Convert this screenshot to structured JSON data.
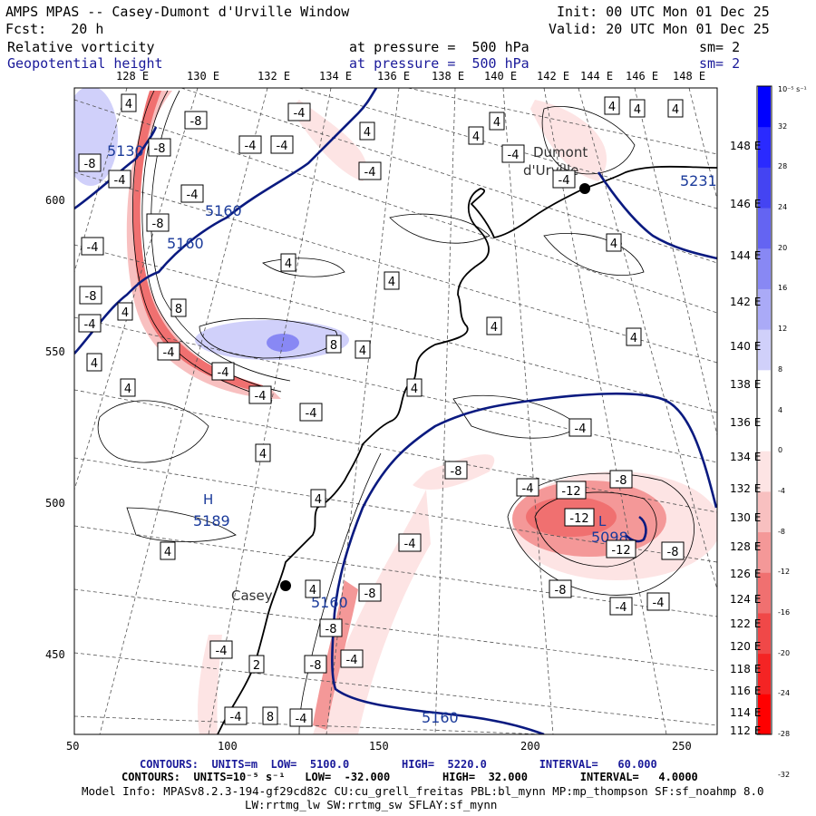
{
  "header": {
    "line1_left": "AMPS MPAS -- Casey-Dumont d'Urville Window",
    "line1_right": "Init: 00 UTC Mon 01 Dec 25",
    "line2_left": "Fcst:   20 h",
    "line2_right": "Valid: 20 UTC Mon 01 Dec 25",
    "field1_name": "Relative vorticity",
    "field1_level": "at pressure =  500 hPa",
    "field1_smooth": "sm= 2",
    "field2_name": "Geopotential height",
    "field2_level": "at pressure =  500 hPa",
    "field2_smooth": "sm= 2"
  },
  "longitude_labels": [
    "128 E",
    "130 E",
    "132 E",
    "134 E",
    "136 E",
    "138 E",
    "140 E",
    "142 E",
    "144 E",
    "146 E",
    "148 E"
  ],
  "x_ticks": [
    "50",
    "100",
    "150",
    "200",
    "250"
  ],
  "y_ticks": [
    "600",
    "550",
    "500",
    "450"
  ],
  "latitude_labels": [
    "148 E",
    "146 E",
    "144 E",
    "142 E",
    "140 E",
    "138 E",
    "136 E",
    "134 E",
    "132 E",
    "130 E",
    "128 E",
    "126 E",
    "124 E",
    "122 E",
    "120 E",
    "118 E",
    "116 E",
    "114 E",
    "112 E"
  ],
  "colorbar": {
    "unit_label": "10⁻⁵ s⁻¹",
    "ticks": [
      "32",
      "28",
      "24",
      "20",
      "16",
      "12",
      "8",
      "4",
      "0",
      "-4",
      "-8",
      "-12",
      "-16",
      "-20",
      "-24",
      "-28",
      "-32"
    ],
    "colors": [
      "#0000ff",
      "#2a2aff",
      "#4444f2",
      "#6464f2",
      "#8888f4",
      "#aaaaf7",
      "#d0d0fa",
      "#ffffff",
      "#ffffff",
      "#fde4e4",
      "#f8c0c0",
      "#f49898",
      "#f07070",
      "#f04848",
      "#f42424",
      "#ff0000"
    ]
  },
  "places": [
    {
      "name": "Casey"
    },
    {
      "name": "Dumont"
    },
    {
      "name": "d'Urville"
    }
  ],
  "highs_lows": [
    {
      "symbol": "H",
      "value": "5189"
    },
    {
      "symbol": "L",
      "value": "5098"
    }
  ],
  "height_labels": [
    "5160",
    "5160",
    "5160",
    "5160",
    "5231",
    "5130"
  ],
  "vorticity_labels": [
    "4",
    "-4",
    "-8",
    "-12",
    "8",
    "2"
  ],
  "footer": {
    "contours1": "CONTOURS:  UNITS=m  LOW=  5100.0        HIGH=  5220.0        INTERVAL=   60.000",
    "contours2": "CONTOURS:  UNITS=10⁻⁵ s⁻¹   LOW=  -32.000        HIGH=  32.000        INTERVAL=   4.0000",
    "model_info": "Model Info: MPASv8.2.3-194-gf29cd82c CU:cu_grell_freitas PBL:bl_mynn MP:mp_thompson SF:sf_noahmp 8.0",
    "model_info2": "LW:rrtmg_lw SW:rrtmg_sw SFLAY:sf_mynn"
  }
}
